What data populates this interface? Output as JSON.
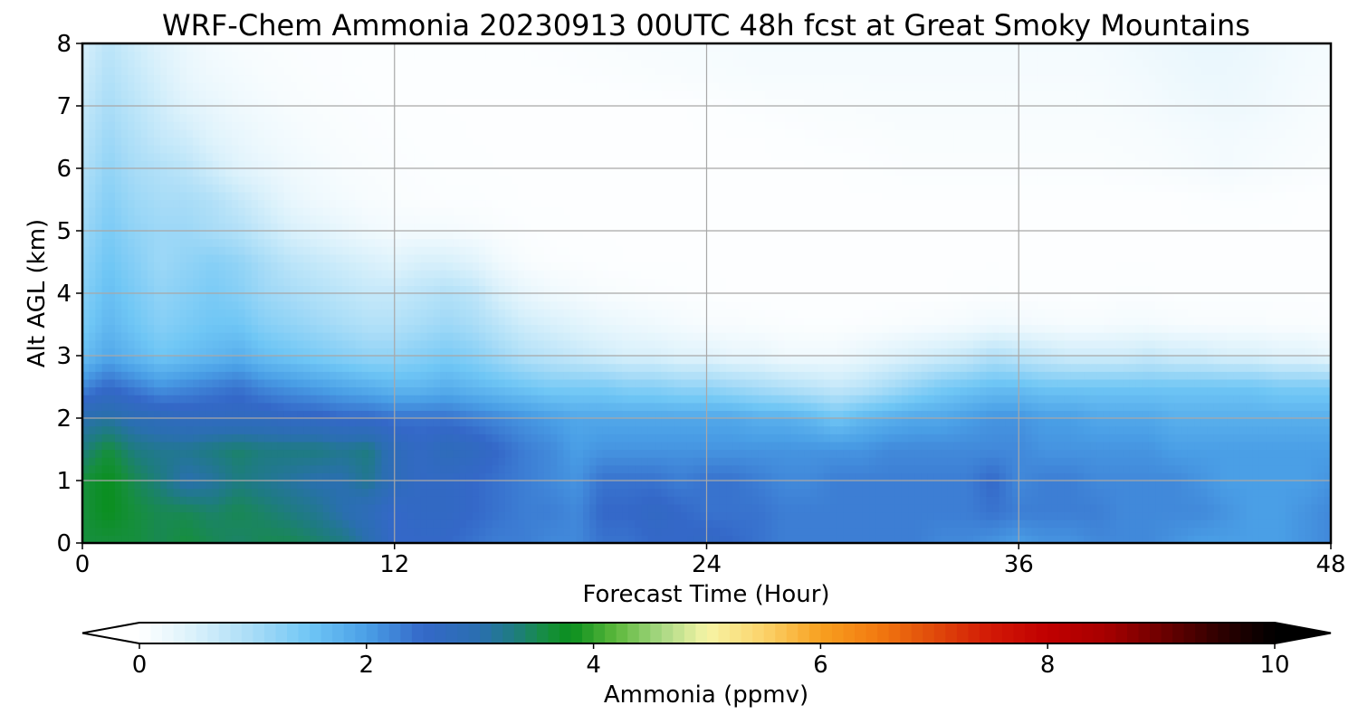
{
  "chart_data": {
    "type": "heatmap",
    "title": "WRF-Chem Ammonia  20230913 00UTC 48h fcst at Great Smoky Mountains",
    "xlabel": "Forecast Time (Hour)",
    "ylabel": "Alt AGL (km)",
    "xlim": [
      0,
      48
    ],
    "ylim": [
      0,
      8
    ],
    "x_ticks": [
      0,
      12,
      24,
      36,
      48
    ],
    "y_ticks": [
      0,
      1,
      2,
      3,
      4,
      5,
      6,
      7,
      8
    ],
    "grid": true,
    "colorbar": {
      "label": "Ammonia  (ppmv)",
      "range": [
        0,
        10
      ],
      "ticks": [
        0,
        2,
        4,
        6,
        8,
        10
      ],
      "extend": "both",
      "stops": [
        [
          0.0,
          "#ffffff"
        ],
        [
          0.5,
          "#d8f0fb"
        ],
        [
          1.0,
          "#a8dcf7"
        ],
        [
          1.5,
          "#6fc6f5"
        ],
        [
          2.0,
          "#4a9fe6"
        ],
        [
          2.5,
          "#3468c8"
        ],
        [
          3.0,
          "#2a6fb0"
        ],
        [
          3.3,
          "#1e7c80"
        ],
        [
          3.6,
          "#168f3c"
        ],
        [
          3.8,
          "#0a8f1e"
        ],
        [
          4.2,
          "#5db83c"
        ],
        [
          4.6,
          "#a8d884"
        ],
        [
          5.0,
          "#f6f4a6"
        ],
        [
          5.5,
          "#fbd36a"
        ],
        [
          6.0,
          "#f8a020"
        ],
        [
          6.5,
          "#f27a10"
        ],
        [
          7.0,
          "#e04a0a"
        ],
        [
          7.5,
          "#d21806"
        ],
        [
          8.0,
          "#c00000"
        ],
        [
          8.5,
          "#a80000"
        ],
        [
          9.0,
          "#6e0000"
        ],
        [
          9.5,
          "#300000"
        ],
        [
          10.0,
          "#000000"
        ]
      ]
    },
    "x": [
      0,
      1,
      2,
      3,
      4,
      5,
      6,
      7,
      8,
      9,
      10,
      11,
      12,
      13,
      14,
      15,
      16,
      17,
      18,
      19,
      20,
      21,
      22,
      23,
      24,
      25,
      26,
      27,
      28,
      29,
      30,
      31,
      32,
      33,
      34,
      35,
      36,
      37,
      38,
      39,
      40,
      41,
      42,
      43,
      44,
      45,
      46,
      47,
      48
    ],
    "y": [
      0,
      0.5,
      1.0,
      1.5,
      2.0,
      2.5,
      3.0,
      3.5,
      4.0,
      4.5,
      5.0,
      5.5,
      6.0,
      6.5,
      7.0,
      7.5,
      8.0
    ],
    "z": [
      [
        3.6,
        3.6,
        3.6,
        3.5,
        3.6,
        3.5,
        3.4,
        3.5,
        3.5,
        3.4,
        3.3,
        3.0,
        2.5,
        2.5,
        2.5,
        2.4,
        2.3,
        2.3,
        2.2,
        2.2,
        2.4,
        2.4,
        2.5,
        2.5,
        2.6,
        2.5,
        2.4,
        2.3,
        2.3,
        2.3,
        2.3,
        2.3,
        2.3,
        2.2,
        2.2,
        2.1,
        2.0,
        2.1,
        2.1,
        2.2,
        2.2,
        2.2,
        2.1,
        2.0,
        2.0,
        2.0,
        2.0,
        2.1,
        2.2
      ],
      [
        3.6,
        3.8,
        3.6,
        3.5,
        3.5,
        3.4,
        3.5,
        3.4,
        3.3,
        3.2,
        3.0,
        2.8,
        2.5,
        2.6,
        2.6,
        2.5,
        2.4,
        2.3,
        2.3,
        2.2,
        2.5,
        2.5,
        2.6,
        2.5,
        2.4,
        2.4,
        2.4,
        2.3,
        2.3,
        2.3,
        2.3,
        2.3,
        2.3,
        2.3,
        2.3,
        2.4,
        2.3,
        2.3,
        2.3,
        2.3,
        2.2,
        2.2,
        2.2,
        2.2,
        2.1,
        2.0,
        2.0,
        2.1,
        2.2
      ],
      [
        3.6,
        3.8,
        3.5,
        3.3,
        3.0,
        3.1,
        3.3,
        3.2,
        3.1,
        3.0,
        3.0,
        3.2,
        2.8,
        2.6,
        2.6,
        2.5,
        2.4,
        2.3,
        2.2,
        2.1,
        2.4,
        2.4,
        2.4,
        2.3,
        2.4,
        2.4,
        2.3,
        2.2,
        2.2,
        2.3,
        2.3,
        2.3,
        2.3,
        2.3,
        2.3,
        2.5,
        2.2,
        2.3,
        2.3,
        2.2,
        2.2,
        2.2,
        2.2,
        2.1,
        2.0,
        2.0,
        2.0,
        2.0,
        2.1
      ],
      [
        3.3,
        3.6,
        3.3,
        3.2,
        3.2,
        3.3,
        3.4,
        3.3,
        3.3,
        3.3,
        3.2,
        3.3,
        2.8,
        2.6,
        2.8,
        2.7,
        2.5,
        2.3,
        2.2,
        2.0,
        2.1,
        2.1,
        2.1,
        2.1,
        2.1,
        2.1,
        2.1,
        2.1,
        2.1,
        2.1,
        2.1,
        2.2,
        2.2,
        2.2,
        2.2,
        2.2,
        2.2,
        2.1,
        2.1,
        2.1,
        2.1,
        2.1,
        2.0,
        2.0,
        2.0,
        2.0,
        2.0,
        2.0,
        2.0
      ],
      [
        3.0,
        3.1,
        2.9,
        2.8,
        2.7,
        2.7,
        2.7,
        2.7,
        2.6,
        2.6,
        2.5,
        2.5,
        2.4,
        2.4,
        2.4,
        2.3,
        2.2,
        2.1,
        2.0,
        1.9,
        1.9,
        1.9,
        1.9,
        1.9,
        1.9,
        1.9,
        1.8,
        1.8,
        1.7,
        1.5,
        1.7,
        1.8,
        1.9,
        1.9,
        2.0,
        2.1,
        2.1,
        2.0,
        2.0,
        1.9,
        1.9,
        1.9,
        1.8,
        1.8,
        1.8,
        1.8,
        1.8,
        1.8,
        1.8
      ],
      [
        2.2,
        2.5,
        2.3,
        2.1,
        2.2,
        2.3,
        2.4,
        2.2,
        2.1,
        2.0,
        1.9,
        1.8,
        1.7,
        1.7,
        1.8,
        1.7,
        1.6,
        1.5,
        1.4,
        1.4,
        1.4,
        1.3,
        1.3,
        1.2,
        1.2,
        1.1,
        1.0,
        0.9,
        0.8,
        0.7,
        0.8,
        1.0,
        1.2,
        1.4,
        1.5,
        1.6,
        1.6,
        1.5,
        1.5,
        1.5,
        1.5,
        1.5,
        1.5,
        1.5,
        1.5,
        1.5,
        1.4,
        1.4,
        1.4
      ],
      [
        1.6,
        1.9,
        1.7,
        1.5,
        1.6,
        1.7,
        1.8,
        1.6,
        1.5,
        1.4,
        1.3,
        1.2,
        1.2,
        1.3,
        1.4,
        1.3,
        1.1,
        0.9,
        0.8,
        0.7,
        0.6,
        0.5,
        0.5,
        0.4,
        0.4,
        0.3,
        0.3,
        0.2,
        0.2,
        0.2,
        0.3,
        0.4,
        0.5,
        0.6,
        0.7,
        0.9,
        0.8,
        0.7,
        0.6,
        0.6,
        0.6,
        0.7,
        0.6,
        0.6,
        0.5,
        0.5,
        0.4,
        0.4,
        0.3
      ],
      [
        1.4,
        1.7,
        1.5,
        1.3,
        1.4,
        1.5,
        1.5,
        1.3,
        1.2,
        1.1,
        1.0,
        0.9,
        0.9,
        1.0,
        1.1,
        1.0,
        0.8,
        0.6,
        0.5,
        0.4,
        0.3,
        0.25,
        0.2,
        0.15,
        0.1,
        0.1,
        0.08,
        0.06,
        0.05,
        0.05,
        0.06,
        0.08,
        0.1,
        0.12,
        0.15,
        0.2,
        0.18,
        0.15,
        0.12,
        0.12,
        0.15,
        0.15,
        0.12,
        0.1,
        0.1,
        0.1,
        0.08,
        0.08,
        0.06
      ],
      [
        1.3,
        1.6,
        1.4,
        1.2,
        1.3,
        1.4,
        1.3,
        1.1,
        1.0,
        0.9,
        0.8,
        0.7,
        0.7,
        0.8,
        0.9,
        0.8,
        0.5,
        0.3,
        0.2,
        0.15,
        0.1,
        0.08,
        0.06,
        0.05,
        0.04,
        0.03,
        0.03,
        0.03,
        0.03,
        0.03,
        0.03,
        0.03,
        0.03,
        0.03,
        0.04,
        0.05,
        0.04,
        0.04,
        0.04,
        0.04,
        0.05,
        0.05,
        0.04,
        0.04,
        0.04,
        0.04,
        0.04,
        0.04,
        0.04
      ],
      [
        1.2,
        1.5,
        1.3,
        1.1,
        1.2,
        1.3,
        1.2,
        1.0,
        0.8,
        0.7,
        0.6,
        0.5,
        0.4,
        0.5,
        0.5,
        0.4,
        0.2,
        0.1,
        0.06,
        0.05,
        0.04,
        0.03,
        0.03,
        0.03,
        0.03,
        0.03,
        0.03,
        0.03,
        0.03,
        0.03,
        0.03,
        0.03,
        0.03,
        0.03,
        0.03,
        0.03,
        0.03,
        0.03,
        0.03,
        0.03,
        0.03,
        0.03,
        0.03,
        0.03,
        0.03,
        0.03,
        0.03,
        0.03,
        0.03
      ],
      [
        1.1,
        1.4,
        1.2,
        1.1,
        1.1,
        1.0,
        0.9,
        0.7,
        0.5,
        0.4,
        0.3,
        0.2,
        0.15,
        0.15,
        0.15,
        0.12,
        0.08,
        0.05,
        0.04,
        0.03,
        0.03,
        0.03,
        0.03,
        0.03,
        0.03,
        0.03,
        0.03,
        0.03,
        0.03,
        0.03,
        0.03,
        0.03,
        0.03,
        0.03,
        0.03,
        0.03,
        0.03,
        0.03,
        0.03,
        0.03,
        0.03,
        0.03,
        0.03,
        0.03,
        0.03,
        0.03,
        0.03,
        0.03,
        0.03
      ],
      [
        1.0,
        1.3,
        1.1,
        1.0,
        1.0,
        0.9,
        0.7,
        0.5,
        0.3,
        0.2,
        0.15,
        0.1,
        0.08,
        0.06,
        0.05,
        0.05,
        0.04,
        0.03,
        0.03,
        0.03,
        0.03,
        0.03,
        0.03,
        0.03,
        0.03,
        0.03,
        0.03,
        0.03,
        0.03,
        0.03,
        0.03,
        0.03,
        0.03,
        0.03,
        0.03,
        0.03,
        0.03,
        0.03,
        0.03,
        0.03,
        0.03,
        0.03,
        0.03,
        0.04,
        0.05,
        0.05,
        0.04,
        0.03,
        0.03
      ],
      [
        0.9,
        1.2,
        1.0,
        0.9,
        0.8,
        0.6,
        0.4,
        0.3,
        0.2,
        0.15,
        0.1,
        0.08,
        0.06,
        0.05,
        0.04,
        0.04,
        0.03,
        0.03,
        0.03,
        0.03,
        0.03,
        0.03,
        0.03,
        0.03,
        0.03,
        0.03,
        0.03,
        0.03,
        0.03,
        0.03,
        0.04,
        0.05,
        0.06,
        0.06,
        0.06,
        0.06,
        0.06,
        0.06,
        0.06,
        0.06,
        0.07,
        0.08,
        0.1,
        0.12,
        0.15,
        0.12,
        0.1,
        0.08,
        0.06
      ],
      [
        0.8,
        1.1,
        0.9,
        0.7,
        0.6,
        0.4,
        0.3,
        0.2,
        0.15,
        0.1,
        0.08,
        0.06,
        0.05,
        0.04,
        0.04,
        0.03,
        0.03,
        0.03,
        0.03,
        0.03,
        0.03,
        0.03,
        0.03,
        0.03,
        0.03,
        0.03,
        0.03,
        0.04,
        0.05,
        0.06,
        0.06,
        0.07,
        0.08,
        0.08,
        0.08,
        0.08,
        0.08,
        0.08,
        0.08,
        0.08,
        0.09,
        0.1,
        0.12,
        0.14,
        0.16,
        0.14,
        0.12,
        0.1,
        0.08
      ],
      [
        0.7,
        1.0,
        0.8,
        0.6,
        0.4,
        0.3,
        0.2,
        0.15,
        0.1,
        0.08,
        0.06,
        0.05,
        0.04,
        0.04,
        0.03,
        0.03,
        0.03,
        0.03,
        0.03,
        0.03,
        0.03,
        0.03,
        0.03,
        0.03,
        0.04,
        0.05,
        0.06,
        0.07,
        0.08,
        0.08,
        0.09,
        0.1,
        0.1,
        0.1,
        0.1,
        0.1,
        0.1,
        0.1,
        0.1,
        0.1,
        0.12,
        0.14,
        0.18,
        0.2,
        0.22,
        0.2,
        0.16,
        0.12,
        0.1
      ],
      [
        0.6,
        0.9,
        0.7,
        0.5,
        0.3,
        0.2,
        0.15,
        0.1,
        0.08,
        0.06,
        0.05,
        0.04,
        0.04,
        0.04,
        0.04,
        0.04,
        0.04,
        0.04,
        0.04,
        0.05,
        0.06,
        0.07,
        0.08,
        0.09,
        0.1,
        0.11,
        0.12,
        0.12,
        0.12,
        0.12,
        0.12,
        0.12,
        0.12,
        0.12,
        0.12,
        0.12,
        0.12,
        0.12,
        0.12,
        0.13,
        0.15,
        0.18,
        0.22,
        0.25,
        0.25,
        0.22,
        0.18,
        0.14,
        0.12
      ],
      [
        0.5,
        0.8,
        0.6,
        0.4,
        0.25,
        0.15,
        0.1,
        0.08,
        0.06,
        0.05,
        0.05,
        0.05,
        0.05,
        0.05,
        0.05,
        0.05,
        0.05,
        0.05,
        0.06,
        0.07,
        0.08,
        0.09,
        0.1,
        0.11,
        0.12,
        0.13,
        0.14,
        0.14,
        0.14,
        0.14,
        0.14,
        0.14,
        0.14,
        0.14,
        0.14,
        0.14,
        0.14,
        0.14,
        0.14,
        0.15,
        0.18,
        0.22,
        0.25,
        0.28,
        0.28,
        0.25,
        0.2,
        0.16,
        0.14
      ]
    ]
  }
}
